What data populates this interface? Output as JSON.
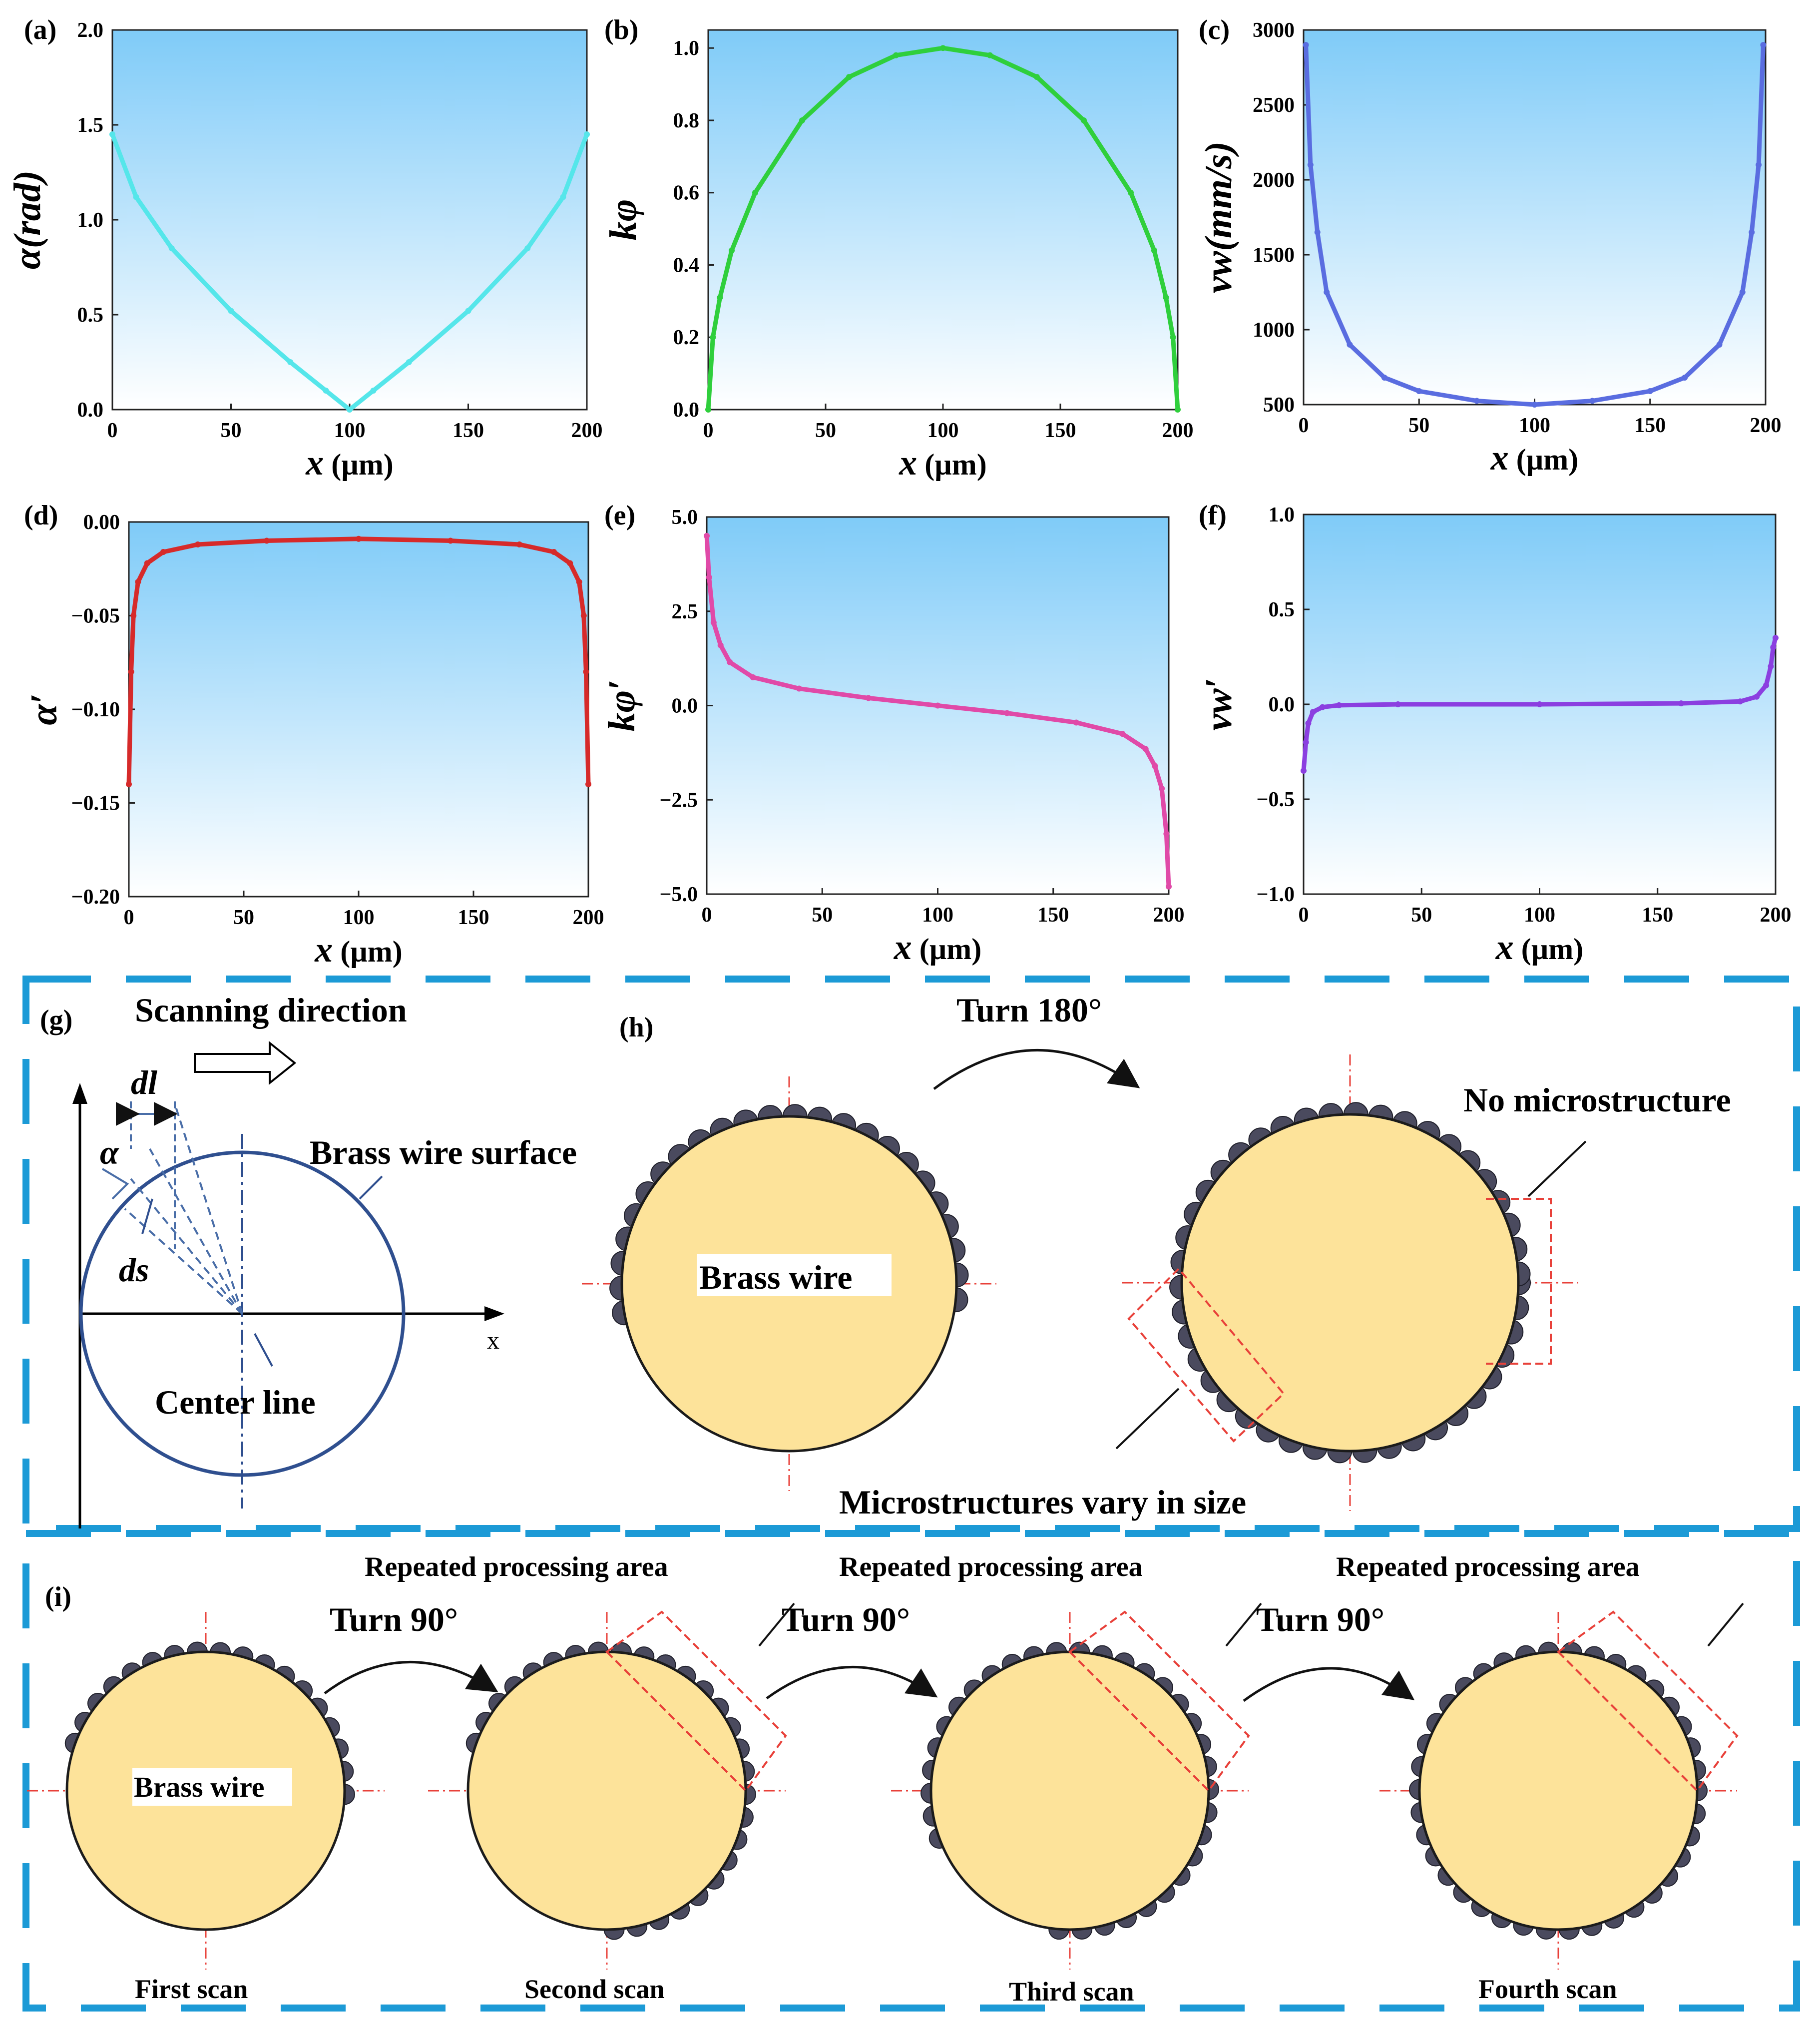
{
  "colors": {
    "panel_top": "#7fcbf8",
    "panel_bottom": "#ffffff",
    "dash_border": "#1c9ad6",
    "wire_fill": "#fde39a",
    "bump_fill": "#4a4a5e",
    "red_guide": "#e8413a",
    "dark_blue": "#2f4f8f",
    "arrow": "#222222"
  },
  "chart_data": [
    {
      "id": "a",
      "type": "line",
      "panel_label": "(a)",
      "xlabel_sym": "x",
      "xlabel_unit": " (µm)",
      "ylabel": "α(rad)",
      "xlim": [
        0,
        200
      ],
      "ylim": [
        0,
        2.0
      ],
      "xticks": [
        "0",
        "50",
        "100",
        "150",
        "200"
      ],
      "yticks": [
        "0.0",
        "0.5",
        "1.0",
        "1.5",
        "2.0"
      ],
      "series": [
        {
          "name": "alpha",
          "color": "#55e6ea",
          "x": [
            0,
            10,
            25,
            50,
            75,
            90,
            100,
            110,
            125,
            150,
            175,
            190,
            200
          ],
          "y": [
            1.45,
            1.12,
            0.85,
            0.52,
            0.25,
            0.1,
            0.0,
            0.1,
            0.25,
            0.52,
            0.85,
            1.12,
            1.45
          ]
        }
      ]
    },
    {
      "id": "b",
      "type": "line",
      "panel_label": "(b)",
      "xlabel_sym": "x",
      "xlabel_unit": " (µm)",
      "ylabel": "kφ",
      "xlim": [
        0,
        200
      ],
      "ylim": [
        0,
        1.05
      ],
      "xticks": [
        "0",
        "50",
        "100",
        "150",
        "200"
      ],
      "yticks": [
        "0.0",
        "0.2",
        "0.4",
        "0.6",
        "0.8",
        "1.0"
      ],
      "series": [
        {
          "name": "k_phi",
          "color": "#2fcf3c",
          "x": [
            0,
            2,
            5,
            10,
            20,
            40,
            60,
            80,
            100,
            120,
            140,
            160,
            180,
            190,
            195,
            198,
            200
          ],
          "y": [
            0.0,
            0.2,
            0.31,
            0.44,
            0.6,
            0.8,
            0.92,
            0.98,
            1.0,
            0.98,
            0.92,
            0.8,
            0.6,
            0.44,
            0.31,
            0.2,
            0.0
          ]
        }
      ]
    },
    {
      "id": "c",
      "type": "line",
      "panel_label": "(c)",
      "xlabel_sym": "x",
      "xlabel_unit": " (µm)",
      "ylabel": "vw(mm/s)",
      "xlim": [
        0,
        200
      ],
      "ylim": [
        500,
        3000
      ],
      "xticks": [
        "0",
        "50",
        "100",
        "150",
        "200"
      ],
      "yticks": [
        "500",
        "1000",
        "1500",
        "2000",
        "2500",
        "3000"
      ],
      "series": [
        {
          "name": "v_w",
          "color": "#5a6de0",
          "x": [
            1,
            3,
            6,
            10,
            20,
            35,
            50,
            75,
            100,
            125,
            150,
            165,
            180,
            190,
            194,
            197,
            199
          ],
          "y": [
            2900,
            2100,
            1650,
            1250,
            900,
            680,
            590,
            525,
            500,
            525,
            590,
            680,
            900,
            1250,
            1650,
            2100,
            2900
          ]
        }
      ]
    },
    {
      "id": "d",
      "type": "line",
      "panel_label": "(d)",
      "xlabel_sym": "x",
      "xlabel_unit": " (µm)",
      "ylabel": "α′",
      "xlim": [
        0,
        200
      ],
      "ylim": [
        -0.2,
        0.0
      ],
      "xticks": [
        "0",
        "50",
        "100",
        "150",
        "200"
      ],
      "yticks": [
        "−0.20",
        "−0.15",
        "−0.10",
        "−0.05",
        "0.00"
      ],
      "series": [
        {
          "name": "alpha_prime",
          "color": "#d62a2a",
          "x": [
            0,
            1,
            2,
            4,
            8,
            15,
            30,
            60,
            100,
            140,
            170,
            185,
            192,
            196,
            198,
            199,
            200
          ],
          "y": [
            -0.14,
            -0.08,
            -0.05,
            -0.032,
            -0.022,
            -0.016,
            -0.012,
            -0.01,
            -0.009,
            -0.01,
            -0.012,
            -0.016,
            -0.022,
            -0.032,
            -0.05,
            -0.08,
            -0.14
          ]
        }
      ]
    },
    {
      "id": "e",
      "type": "line",
      "panel_label": "(e)",
      "xlabel_sym": "x",
      "xlabel_unit": " (µm)",
      "ylabel": "kφ′",
      "xlim": [
        0,
        200
      ],
      "ylim": [
        -5.0,
        5.0
      ],
      "xticks": [
        "0",
        "50",
        "100",
        "150",
        "200"
      ],
      "yticks": [
        "−5.0",
        "−2.5",
        "0.0",
        "2.5",
        "5.0"
      ],
      "series": [
        {
          "name": "k_phi_prime",
          "color": "#e04aa8",
          "x": [
            0,
            1,
            3,
            6,
            10,
            20,
            40,
            70,
            100,
            130,
            160,
            180,
            190,
            194,
            197,
            199,
            200
          ],
          "y": [
            4.5,
            3.4,
            2.2,
            1.6,
            1.15,
            0.75,
            0.45,
            0.2,
            0.0,
            -0.2,
            -0.45,
            -0.75,
            -1.15,
            -1.6,
            -2.2,
            -3.4,
            -4.8
          ]
        }
      ]
    },
    {
      "id": "f",
      "type": "line",
      "panel_label": "(f)",
      "xlabel_sym": "x",
      "xlabel_unit": " (µm)",
      "ylabel": "vw′",
      "xlim": [
        0,
        200
      ],
      "ylim": [
        -1.0,
        1.0
      ],
      "xticks": [
        "0",
        "50",
        "100",
        "150",
        "200"
      ],
      "yticks": [
        "−1.0",
        "−0.5",
        "0.0",
        "0.5",
        "1.0"
      ],
      "series": [
        {
          "name": "v_w_prime",
          "color": "#8b3fe0",
          "x": [
            0,
            1,
            2,
            4,
            8,
            15,
            40,
            100,
            160,
            185,
            192,
            196,
            198,
            199,
            200
          ],
          "y": [
            -0.35,
            -0.2,
            -0.1,
            -0.04,
            -0.015,
            -0.005,
            0.0,
            0.0,
            0.005,
            0.015,
            0.04,
            0.1,
            0.2,
            0.3,
            0.35
          ]
        }
      ]
    }
  ],
  "diagram_g": {
    "panel_label": "(g)",
    "scanning_direction": "Scanning direction",
    "dl": "dl",
    "alpha": "α",
    "ds": "ds",
    "brass_wire_surface": "Brass wire surface",
    "center_line": "Center line",
    "x_axis": "x"
  },
  "diagram_h": {
    "panel_label": "(h)",
    "turn": "Turn 180°",
    "brass_wire": "Brass wire",
    "no_microstructure": "No microstructure",
    "microstructures_vary": "Microstructures vary in size"
  },
  "diagram_i": {
    "panel_label": "(i)",
    "brass_wire": "Brass wire",
    "turns": [
      "Turn 90°",
      "Turn 90°",
      "Turn 90°"
    ],
    "repeated": [
      "Repeated processing area",
      "Repeated processing area",
      "Repeated processing area"
    ],
    "scans": [
      "First scan",
      "Second scan",
      "Third scan",
      "Fourth scan"
    ]
  }
}
